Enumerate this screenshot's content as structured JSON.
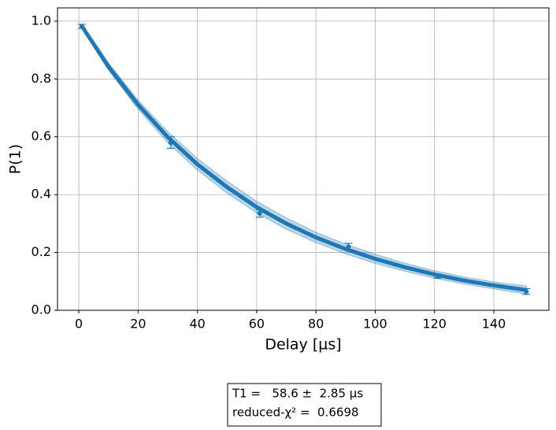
{
  "chart_data": {
    "type": "scatter",
    "xlabel": "Delay [µs]",
    "ylabel": "P(1)",
    "x": [
      1,
      31,
      61,
      91,
      121,
      151
    ],
    "values": [
      0.982,
      0.58,
      0.335,
      0.22,
      0.118,
      0.065
    ],
    "errors": [
      0.007,
      0.02,
      0.013,
      0.012,
      0.007,
      0.01
    ],
    "color": "#1f77b4",
    "fit": {
      "x": [
        1,
        10,
        20,
        30,
        40,
        50,
        60,
        70,
        80,
        90,
        100,
        110,
        120,
        130,
        140,
        151
      ],
      "values": [
        0.983,
        0.843,
        0.711,
        0.599,
        0.505,
        0.426,
        0.357,
        0.3,
        0.252,
        0.212,
        0.178,
        0.149,
        0.124,
        0.103,
        0.086,
        0.07
      ],
      "lower": [
        0.975,
        0.83,
        0.695,
        0.58,
        0.485,
        0.405,
        0.337,
        0.28,
        0.234,
        0.195,
        0.162,
        0.135,
        0.111,
        0.091,
        0.074,
        0.056
      ],
      "upper": [
        0.99,
        0.856,
        0.727,
        0.618,
        0.525,
        0.447,
        0.377,
        0.32,
        0.27,
        0.229,
        0.194,
        0.163,
        0.137,
        0.115,
        0.098,
        0.084
      ]
    },
    "xlim": [
      -7.2,
      158.6
    ],
    "ylim": [
      0,
      1.046
    ],
    "xticks": [
      0,
      20,
      40,
      60,
      80,
      100,
      120,
      140
    ],
    "yticks": [
      {
        "value": 0,
        "label": "0.0"
      },
      {
        "value": 0.2,
        "label": "0.2"
      },
      {
        "value": 0.4,
        "label": "0.4"
      },
      {
        "value": 0.6,
        "label": "0.6"
      },
      {
        "value": 0.8,
        "label": "0.8"
      },
      {
        "value": 1,
        "label": "1.0"
      }
    ],
    "grid": true,
    "annotation": [
      "T1 =   58.6 ±  2.85 µs",
      "reduced-χ² =  0.6698"
    ]
  }
}
